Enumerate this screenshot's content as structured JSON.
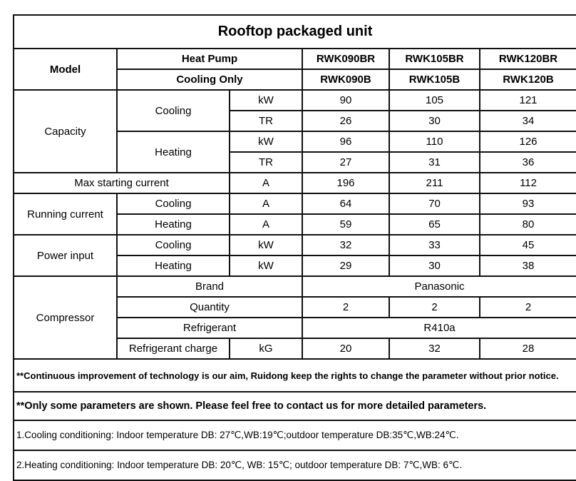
{
  "title": "Rooftop packaged unit",
  "header": {
    "model_label": "Model",
    "heat_pump_label": "Heat Pump",
    "cooling_only_label": "Cooling Only",
    "heat_pump_models": [
      "RWK090BR",
      "RWK105BR",
      "RWK120BR"
    ],
    "cooling_only_models": [
      "RWK090B",
      "RWK105B",
      "RWK120B"
    ]
  },
  "capacity": {
    "label": "Capacity",
    "cooling_label": "Cooling",
    "heating_label": "Heating",
    "cooling_kw": {
      "unit": "kW",
      "values": [
        "90",
        "105",
        "121"
      ]
    },
    "cooling_tr": {
      "unit": "TR",
      "values": [
        "26",
        "30",
        "34"
      ]
    },
    "heating_kw": {
      "unit": "kW",
      "values": [
        "96",
        "110",
        "126"
      ]
    },
    "heating_tr": {
      "unit": "TR",
      "values": [
        "27",
        "31",
        "36"
      ]
    }
  },
  "max_starting_current": {
    "label": "Max starting current",
    "unit": "A",
    "values": [
      "196",
      "211",
      "112"
    ]
  },
  "running_current": {
    "label": "Running current",
    "cooling": {
      "label": "Cooling",
      "unit": "A",
      "values": [
        "64",
        "70",
        "93"
      ]
    },
    "heating": {
      "label": "Heating",
      "unit": "A",
      "values": [
        "59",
        "65",
        "80"
      ]
    }
  },
  "power_input": {
    "label": "Power input",
    "cooling": {
      "label": "Cooling",
      "unit": "kW",
      "values": [
        "32",
        "33",
        "45"
      ]
    },
    "heating": {
      "label": "Heating",
      "unit": "kW",
      "values": [
        "29",
        "30",
        "38"
      ]
    }
  },
  "compressor": {
    "label": "Compressor",
    "brand": {
      "label": "Brand",
      "value": "Panasonic"
    },
    "quantity": {
      "label": "Quantity",
      "values": [
        "2",
        "2",
        "2"
      ]
    },
    "refrigerant": {
      "label": "Refrigerant",
      "value": "R410a"
    },
    "charge": {
      "label": "Refrigerant charge",
      "unit": "kG",
      "values": [
        "20",
        "32",
        "28"
      ]
    }
  },
  "notes": [
    "**Continuous improvement of technology is our aim, Ruidong keep the rights to change the parameter without prior notice.",
    "**Only some parameters are shown. Please feel free to contact us for more detailed parameters.",
    "1.Cooling conditioning: Indoor temperature DB: 27℃,WB:19℃;outdoor temperature DB:35℃,WB:24℃.",
    "2.Heating conditioning: Indoor temperature DB: 20℃, WB: 15℃; outdoor temperature DB: 7℃,WB: 6℃."
  ]
}
